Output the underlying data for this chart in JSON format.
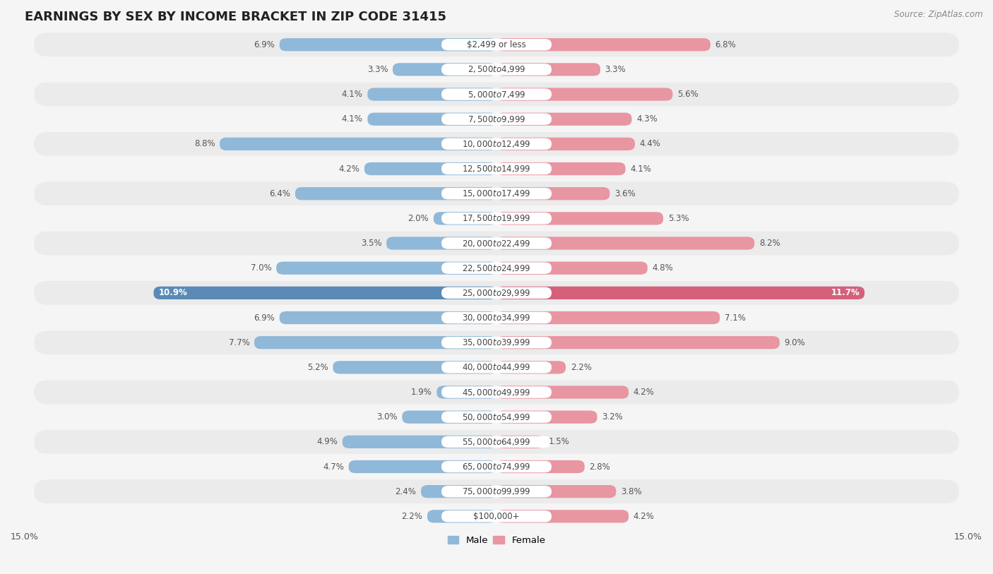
{
  "title": "EARNINGS BY SEX BY INCOME BRACKET IN ZIP CODE 31415",
  "source": "Source: ZipAtlas.com",
  "categories": [
    "$2,499 or less",
    "$2,500 to $4,999",
    "$5,000 to $7,499",
    "$7,500 to $9,999",
    "$10,000 to $12,499",
    "$12,500 to $14,999",
    "$15,000 to $17,499",
    "$17,500 to $19,999",
    "$20,000 to $22,499",
    "$22,500 to $24,999",
    "$25,000 to $29,999",
    "$30,000 to $34,999",
    "$35,000 to $39,999",
    "$40,000 to $44,999",
    "$45,000 to $49,999",
    "$50,000 to $54,999",
    "$55,000 to $64,999",
    "$65,000 to $74,999",
    "$75,000 to $99,999",
    "$100,000+"
  ],
  "male_values": [
    6.9,
    3.3,
    4.1,
    4.1,
    8.8,
    4.2,
    6.4,
    2.0,
    3.5,
    7.0,
    10.9,
    6.9,
    7.7,
    5.2,
    1.9,
    3.0,
    4.9,
    4.7,
    2.4,
    2.2
  ],
  "female_values": [
    6.8,
    3.3,
    5.6,
    4.3,
    4.4,
    4.1,
    3.6,
    5.3,
    8.2,
    4.8,
    11.7,
    7.1,
    9.0,
    2.2,
    4.2,
    3.2,
    1.5,
    2.8,
    3.8,
    4.2
  ],
  "male_color": "#90b8d8",
  "female_color": "#e896a2",
  "highlight_male_color": "#5a8ab5",
  "highlight_female_color": "#d4607a",
  "row_odd_color": "#ebebeb",
  "row_even_color": "#f5f5f5",
  "bg_color": "#f5f5f5",
  "xlim": 15.0,
  "bar_height": 0.52,
  "title_fontsize": 13,
  "label_fontsize": 8.5,
  "category_fontsize": 8.5,
  "axis_fontsize": 9
}
